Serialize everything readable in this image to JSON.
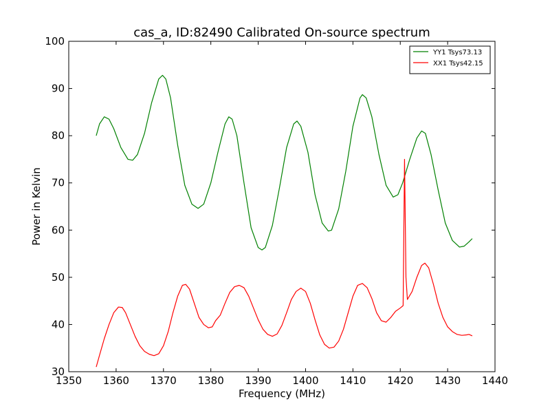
{
  "chart_data": {
    "type": "line",
    "title": "cas_a, ID:82490 Calibrated On-source spectrum",
    "xlabel": "Frequency (MHz)",
    "ylabel": "Power in Kelvin",
    "xlim": [
      1350,
      1440
    ],
    "ylim": [
      30,
      100
    ],
    "xticks": [
      1350,
      1360,
      1370,
      1380,
      1390,
      1400,
      1410,
      1420,
      1430,
      1440
    ],
    "yticks": [
      30,
      40,
      50,
      60,
      70,
      80,
      90,
      100
    ],
    "legend_position": "top-right",
    "grid": false,
    "series": [
      {
        "name": "YY1 Tsys73.13",
        "color": "#008000",
        "points": [
          [
            1355.8,
            80.0
          ],
          [
            1356.5,
            82.5
          ],
          [
            1357.5,
            84.0
          ],
          [
            1358.5,
            83.5
          ],
          [
            1359.5,
            81.5
          ],
          [
            1361.0,
            77.5
          ],
          [
            1362.5,
            75.0
          ],
          [
            1363.5,
            74.8
          ],
          [
            1364.5,
            76.0
          ],
          [
            1366.0,
            80.5
          ],
          [
            1367.5,
            87.0
          ],
          [
            1369.0,
            92.0
          ],
          [
            1369.8,
            92.8
          ],
          [
            1370.5,
            92.0
          ],
          [
            1371.5,
            88.0
          ],
          [
            1373.0,
            78.0
          ],
          [
            1374.5,
            69.5
          ],
          [
            1376.0,
            65.5
          ],
          [
            1377.3,
            64.6
          ],
          [
            1378.5,
            65.5
          ],
          [
            1380.0,
            70.0
          ],
          [
            1381.5,
            76.5
          ],
          [
            1383.0,
            82.5
          ],
          [
            1383.8,
            84.0
          ],
          [
            1384.5,
            83.5
          ],
          [
            1385.5,
            80.0
          ],
          [
            1387.0,
            70.0
          ],
          [
            1388.5,
            60.5
          ],
          [
            1390.0,
            56.3
          ],
          [
            1390.8,
            55.8
          ],
          [
            1391.5,
            56.3
          ],
          [
            1393.0,
            61.0
          ],
          [
            1394.5,
            69.0
          ],
          [
            1396.0,
            77.5
          ],
          [
            1397.5,
            82.5
          ],
          [
            1398.2,
            83.1
          ],
          [
            1399.0,
            82.0
          ],
          [
            1400.5,
            76.5
          ],
          [
            1402.0,
            67.5
          ],
          [
            1403.5,
            61.5
          ],
          [
            1404.8,
            59.8
          ],
          [
            1405.5,
            60.0
          ],
          [
            1407.0,
            64.5
          ],
          [
            1408.5,
            72.5
          ],
          [
            1410.0,
            82.0
          ],
          [
            1411.5,
            88.0
          ],
          [
            1412.0,
            88.7
          ],
          [
            1412.8,
            88.0
          ],
          [
            1414.0,
            84.0
          ],
          [
            1415.5,
            76.0
          ],
          [
            1417.0,
            69.5
          ],
          [
            1418.5,
            67.0
          ],
          [
            1419.5,
            67.5
          ],
          [
            1420.5,
            70.0
          ],
          [
            1422.0,
            75.0
          ],
          [
            1423.5,
            79.5
          ],
          [
            1424.5,
            81.0
          ],
          [
            1425.3,
            80.5
          ],
          [
            1426.5,
            76.0
          ],
          [
            1428.0,
            68.5
          ],
          [
            1429.5,
            61.5
          ],
          [
            1431.0,
            57.8
          ],
          [
            1432.5,
            56.4
          ],
          [
            1433.5,
            56.6
          ],
          [
            1434.5,
            57.5
          ],
          [
            1435.2,
            58.2
          ]
        ]
      },
      {
        "name": "XX1 Tsys42.15",
        "color": "#ff0000",
        "points": [
          [
            1355.8,
            31.0
          ],
          [
            1356.5,
            33.5
          ],
          [
            1357.5,
            37.0
          ],
          [
            1358.5,
            40.0
          ],
          [
            1359.5,
            42.5
          ],
          [
            1360.5,
            43.7
          ],
          [
            1361.3,
            43.6
          ],
          [
            1362.0,
            42.5
          ],
          [
            1363.0,
            40.0
          ],
          [
            1364.0,
            37.5
          ],
          [
            1365.0,
            35.5
          ],
          [
            1366.0,
            34.3
          ],
          [
            1367.0,
            33.7
          ],
          [
            1368.0,
            33.4
          ],
          [
            1369.0,
            33.8
          ],
          [
            1370.0,
            35.5
          ],
          [
            1371.0,
            38.5
          ],
          [
            1372.0,
            42.5
          ],
          [
            1373.0,
            46.0
          ],
          [
            1374.0,
            48.3
          ],
          [
            1374.7,
            48.5
          ],
          [
            1375.5,
            47.5
          ],
          [
            1376.5,
            44.5
          ],
          [
            1377.5,
            41.5
          ],
          [
            1378.5,
            40.0
          ],
          [
            1379.5,
            39.3
          ],
          [
            1380.3,
            39.5
          ],
          [
            1381.0,
            40.8
          ],
          [
            1382.0,
            42.0
          ],
          [
            1383.0,
            44.5
          ],
          [
            1384.0,
            46.8
          ],
          [
            1385.0,
            48.0
          ],
          [
            1386.0,
            48.3
          ],
          [
            1387.0,
            47.8
          ],
          [
            1388.0,
            46.0
          ],
          [
            1389.0,
            43.5
          ],
          [
            1390.0,
            41.0
          ],
          [
            1391.0,
            39.0
          ],
          [
            1392.0,
            37.9
          ],
          [
            1393.0,
            37.5
          ],
          [
            1394.0,
            38.0
          ],
          [
            1395.0,
            39.8
          ],
          [
            1396.0,
            42.5
          ],
          [
            1397.0,
            45.3
          ],
          [
            1398.0,
            47.0
          ],
          [
            1399.0,
            47.7
          ],
          [
            1400.0,
            47.0
          ],
          [
            1401.0,
            44.5
          ],
          [
            1402.0,
            41.0
          ],
          [
            1403.0,
            37.8
          ],
          [
            1404.0,
            35.8
          ],
          [
            1405.0,
            35.0
          ],
          [
            1406.0,
            35.2
          ],
          [
            1407.0,
            36.5
          ],
          [
            1408.0,
            39.0
          ],
          [
            1409.0,
            42.5
          ],
          [
            1410.0,
            46.0
          ],
          [
            1411.0,
            48.3
          ],
          [
            1412.0,
            48.7
          ],
          [
            1413.0,
            47.8
          ],
          [
            1414.0,
            45.5
          ],
          [
            1415.0,
            42.5
          ],
          [
            1416.0,
            40.8
          ],
          [
            1417.0,
            40.5
          ],
          [
            1418.0,
            41.5
          ],
          [
            1419.0,
            42.8
          ],
          [
            1420.0,
            43.5
          ],
          [
            1420.6,
            44.0
          ],
          [
            1420.9,
            75.0
          ],
          [
            1421.2,
            50.0
          ],
          [
            1421.5,
            45.3
          ],
          [
            1422.5,
            47.0
          ],
          [
            1423.5,
            50.0
          ],
          [
            1424.5,
            52.5
          ],
          [
            1425.2,
            53.0
          ],
          [
            1426.0,
            52.0
          ],
          [
            1427.0,
            48.5
          ],
          [
            1428.0,
            44.5
          ],
          [
            1429.0,
            41.5
          ],
          [
            1430.0,
            39.5
          ],
          [
            1431.0,
            38.5
          ],
          [
            1432.0,
            37.9
          ],
          [
            1433.0,
            37.7
          ],
          [
            1434.0,
            37.8
          ],
          [
            1434.5,
            37.9
          ],
          [
            1435.2,
            37.6
          ]
        ]
      }
    ]
  }
}
